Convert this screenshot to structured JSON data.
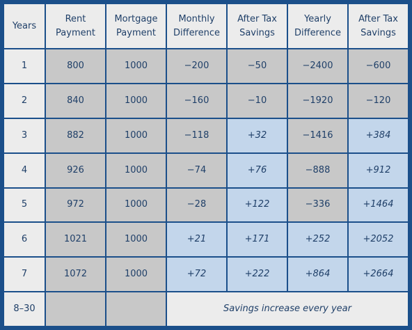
{
  "headers": [
    {
      "line1": "Years",
      "line2": ""
    },
    {
      "line1": "Rent",
      "line2": "Payment"
    },
    {
      "line1": "Mortgage",
      "line2": "Payment"
    },
    {
      "line1": "Monthly",
      "line2": "Difference"
    },
    {
      "line1": "After Tax",
      "line2": "Savings"
    },
    {
      "line1": "Yearly",
      "line2": "Difference"
    },
    {
      "line1": "After Tax",
      "line2": "Savings"
    }
  ],
  "rows": [
    {
      "year": "1",
      "rent": "800",
      "mortgage": "1000",
      "monthly_diff": "−200",
      "monthly_savings": "−50",
      "yearly_diff": "−2400",
      "yearly_savings": "−600"
    },
    {
      "year": "2",
      "rent": "840",
      "mortgage": "1000",
      "monthly_diff": "−160",
      "monthly_savings": "−10",
      "yearly_diff": "−1920",
      "yearly_savings": "−120"
    },
    {
      "year": "3",
      "rent": "882",
      "mortgage": "1000",
      "monthly_diff": "−118",
      "monthly_savings": "+32",
      "yearly_diff": "−1416",
      "yearly_savings": "+384"
    },
    {
      "year": "4",
      "rent": "926",
      "mortgage": "1000",
      "monthly_diff": "−74",
      "monthly_savings": "+76",
      "yearly_diff": "−888",
      "yearly_savings": "+912"
    },
    {
      "year": "5",
      "rent": "972",
      "mortgage": "1000",
      "monthly_diff": "−28",
      "monthly_savings": "+122",
      "yearly_diff": "−336",
      "yearly_savings": "+1464"
    },
    {
      "year": "6",
      "rent": "1021",
      "mortgage": "1000",
      "monthly_diff": "+21",
      "monthly_savings": "+171",
      "yearly_diff": "+252",
      "yearly_savings": "+2052"
    },
    {
      "year": "7",
      "rent": "1072",
      "mortgage": "1000",
      "monthly_diff": "+72",
      "monthly_savings": "+222",
      "yearly_diff": "+864",
      "yearly_savings": "+2664"
    }
  ],
  "footer": {
    "years": "8–30",
    "note": "Savings increase every year"
  },
  "colors": {
    "border": "#1b4f8a",
    "text": "#1f3f68",
    "cell_light": "#ececec",
    "cell_gray": "#c8c8c8",
    "cell_blue": "#c3d6eb"
  }
}
